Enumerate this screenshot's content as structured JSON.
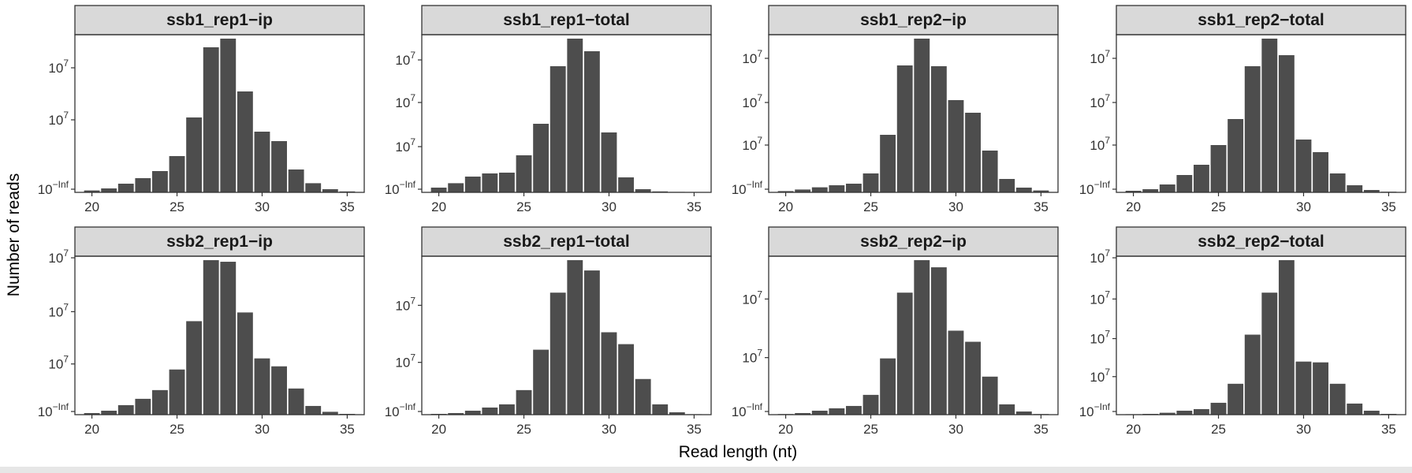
{
  "chart_data": {
    "type": "bar",
    "layout": "facet-grid-2x4",
    "xlabel": "Read length (nt)",
    "ylabel": "Number of reads",
    "x_ticks": [
      "20",
      "25",
      "30",
      "35"
    ],
    "xlim": [
      19,
      36
    ],
    "y_scale": "log",
    "bar_color": "#4d4d4d",
    "strip_color": "#d9d9d9",
    "panels": [
      {
        "title": "ssb1_rep1−ip",
        "y_tick_labels": [
          {
            "base": "10",
            "exp": "7",
            "at": 0.79
          },
          {
            "base": "10",
            "exp": "7",
            "at": 0.46
          },
          {
            "base": "10",
            "exp": "−Inf",
            "at": 0.02
          }
        ],
        "x": [
          20,
          21,
          22,
          23,
          24,
          25,
          26,
          27,
          28,
          29,
          30,
          31,
          32,
          33,
          34,
          35
        ],
        "values": [
          0.012,
          0.025,
          0.055,
          0.09,
          0.135,
          0.23,
          0.475,
          0.92,
          0.975,
          0.64,
          0.385,
          0.325,
          0.145,
          0.058,
          0.02,
          0.006
        ]
      },
      {
        "title": "ssb1_rep1−total",
        "y_tick_labels": [
          {
            "base": "10",
            "exp": "7",
            "at": 0.84
          },
          {
            "base": "10",
            "exp": "7",
            "at": 0.57
          },
          {
            "base": "10",
            "exp": "7",
            "at": 0.29
          },
          {
            "base": "10",
            "exp": "−Inf",
            "at": 0.02
          }
        ],
        "x": [
          20,
          21,
          22,
          23,
          24,
          25,
          26,
          27,
          28,
          29,
          30,
          31,
          32,
          33,
          34,
          35
        ],
        "values": [
          0.03,
          0.058,
          0.1,
          0.12,
          0.125,
          0.235,
          0.435,
          0.8,
          0.975,
          0.895,
          0.38,
          0.095,
          0.02,
          0.006,
          0.003,
          0.001
        ]
      },
      {
        "title": "ssb1_rep2−ip",
        "y_tick_labels": [
          {
            "base": "10",
            "exp": "7",
            "at": 0.85
          },
          {
            "base": "10",
            "exp": "7",
            "at": 0.57
          },
          {
            "base": "10",
            "exp": "7",
            "at": 0.3
          },
          {
            "base": "10",
            "exp": "−Inf",
            "at": 0.02
          }
        ],
        "x": [
          20,
          21,
          22,
          23,
          24,
          25,
          26,
          27,
          28,
          29,
          30,
          31,
          32,
          33,
          34,
          35
        ],
        "values": [
          0.008,
          0.018,
          0.032,
          0.045,
          0.055,
          0.12,
          0.365,
          0.805,
          0.975,
          0.8,
          0.585,
          0.505,
          0.265,
          0.085,
          0.03,
          0.012
        ]
      },
      {
        "title": "ssb1_rep2−total",
        "y_tick_labels": [
          {
            "base": "10",
            "exp": "7",
            "at": 0.85
          },
          {
            "base": "10",
            "exp": "7",
            "at": 0.57
          },
          {
            "base": "10",
            "exp": "7",
            "at": 0.3
          },
          {
            "base": "10",
            "exp": "−Inf",
            "at": 0.02
          }
        ],
        "x": [
          20,
          21,
          22,
          23,
          24,
          25,
          26,
          27,
          28,
          29,
          30,
          31,
          32,
          33,
          34,
          35
        ],
        "values": [
          0.01,
          0.02,
          0.05,
          0.11,
          0.175,
          0.3,
          0.465,
          0.8,
          0.975,
          0.87,
          0.335,
          0.255,
          0.12,
          0.045,
          0.015,
          0.004
        ]
      },
      {
        "title": "ssb2_rep1−ip",
        "y_tick_labels": [
          {
            "base": "10",
            "exp": "7",
            "at": 0.99
          },
          {
            "base": "10",
            "exp": "7",
            "at": 0.65
          },
          {
            "base": "10",
            "exp": "7",
            "at": 0.32
          },
          {
            "base": "10",
            "exp": "−Inf",
            "at": 0.02
          }
        ],
        "x": [
          20,
          21,
          22,
          23,
          24,
          25,
          26,
          27,
          28,
          29,
          30,
          31,
          32,
          33,
          34,
          35
        ],
        "values": [
          0.01,
          0.025,
          0.06,
          0.1,
          0.155,
          0.285,
          0.59,
          0.975,
          0.965,
          0.645,
          0.355,
          0.305,
          0.165,
          0.055,
          0.018,
          0.005
        ]
      },
      {
        "title": "ssb2_rep1−total",
        "y_tick_labels": [
          {
            "base": "10",
            "exp": "7",
            "at": 0.69
          },
          {
            "base": "10",
            "exp": "7",
            "at": 0.33
          },
          {
            "base": "10",
            "exp": "−Inf",
            "at": 0.02
          }
        ],
        "x": [
          20,
          21,
          22,
          23,
          24,
          25,
          26,
          27,
          28,
          29,
          30,
          31,
          32,
          33,
          34,
          35
        ],
        "values": [
          0.005,
          0.01,
          0.025,
          0.045,
          0.065,
          0.155,
          0.41,
          0.77,
          0.975,
          0.91,
          0.52,
          0.445,
          0.225,
          0.065,
          0.015,
          0.003
        ]
      },
      {
        "title": "ssb2_rep2−ip",
        "y_tick_labels": [
          {
            "base": "10",
            "exp": "7",
            "at": 0.73
          },
          {
            "base": "10",
            "exp": "7",
            "at": 0.36
          },
          {
            "base": "10",
            "exp": "−Inf",
            "at": 0.02
          }
        ],
        "x": [
          20,
          21,
          22,
          23,
          24,
          25,
          26,
          27,
          28,
          29,
          30,
          31,
          32,
          33,
          34,
          35
        ],
        "values": [
          0.004,
          0.01,
          0.025,
          0.04,
          0.055,
          0.125,
          0.355,
          0.77,
          0.975,
          0.93,
          0.53,
          0.46,
          0.24,
          0.065,
          0.02,
          0.004
        ]
      },
      {
        "title": "ssb2_rep2−total",
        "y_tick_labels": [
          {
            "base": "10",
            "exp": "7",
            "at": 0.99
          },
          {
            "base": "10",
            "exp": "7",
            "at": 0.73
          },
          {
            "base": "10",
            "exp": "7",
            "at": 0.48
          },
          {
            "base": "10",
            "exp": "7",
            "at": 0.24
          },
          {
            "base": "10",
            "exp": "−Inf",
            "at": 0.02
          }
        ],
        "x": [
          20,
          21,
          22,
          23,
          24,
          25,
          26,
          27,
          28,
          29,
          30,
          31,
          32,
          33,
          34,
          35
        ],
        "values": [
          0.003,
          0.005,
          0.012,
          0.025,
          0.035,
          0.075,
          0.195,
          0.505,
          0.77,
          0.975,
          0.335,
          0.33,
          0.195,
          0.07,
          0.025,
          0.005
        ]
      }
    ]
  }
}
